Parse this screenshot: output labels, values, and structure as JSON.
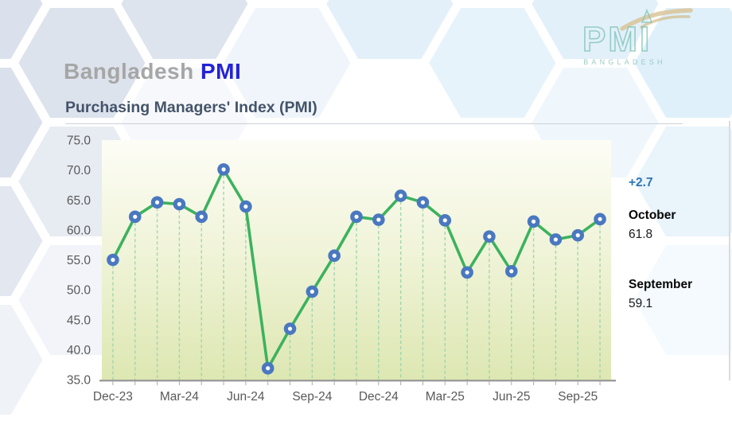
{
  "header": {
    "title_gray": "Bangladesh",
    "title_blue": "PMI",
    "subtitle": "Purchasing Managers' Index (PMI)"
  },
  "logo": {
    "text": "PMI",
    "subtext": "BANGLADESH",
    "teal_color": "#83c5b8",
    "swoosh_color": "#d8c291"
  },
  "panel": {
    "change": "+2.7",
    "change_color": "#2E75B6",
    "current_label": "October",
    "current_value": "61.8",
    "previous_label": "September",
    "previous_value": "59.1"
  },
  "chart_data": {
    "type": "line",
    "title": "Purchasing Managers' Index (PMI)",
    "x": [
      "Dec-23",
      "Jan-24",
      "Feb-24",
      "Mar-24",
      "Apr-24",
      "May-24",
      "Jun-24",
      "Jul-24",
      "Aug-24",
      "Sep-24",
      "Oct-24",
      "Nov-24",
      "Dec-24",
      "Jan-25",
      "Feb-25",
      "Mar-25",
      "Apr-25",
      "May-25",
      "Jun-25",
      "Jul-25",
      "Aug-25",
      "Sep-25",
      "Oct-25"
    ],
    "values": [
      55.0,
      62.2,
      64.6,
      64.3,
      62.2,
      70.1,
      63.9,
      36.9,
      43.5,
      49.7,
      55.7,
      62.2,
      61.7,
      65.7,
      64.6,
      61.6,
      52.9,
      58.9,
      53.1,
      61.4,
      58.4,
      59.1,
      61.8
    ],
    "x_label_every": 3,
    "x_tick_labels_shown": [
      "Dec-23",
      "Mar-24",
      "Jun-24",
      "Sep-24",
      "Dec-24",
      "Mar-25",
      "Jun-25",
      "Sep-25"
    ],
    "y_ticks": [
      "75.0",
      "70.0",
      "65.0",
      "60.0",
      "55.0",
      "50.0",
      "45.0",
      "40.0",
      "35.0"
    ],
    "ylim": [
      35,
      75
    ],
    "ytick_step": 5,
    "grid": "vertical-droplines-dashed",
    "legend": "none",
    "line_color": "#3cb25e",
    "marker_color": "#4a78c0",
    "dropline_color": "#a0d5ae",
    "axis_color": "#9b9b9b",
    "label_color": "#595959",
    "plot_bg_top": "#fdfdf6",
    "plot_bg_mid": "#eff3d6",
    "plot_bg_bottom": "#dde7b2"
  }
}
